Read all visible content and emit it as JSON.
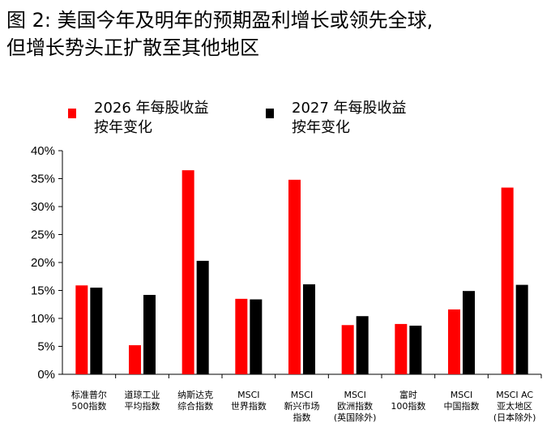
{
  "title": {
    "line1": "图 2: 美国今年及明年的预期盈利增长或领先全球,",
    "line2": "但增长势头正扩散至其他地区"
  },
  "colors": {
    "series1": "#ff0000",
    "series2": "#000000",
    "axis": "#000000"
  },
  "legend": [
    {
      "line1": "2026 年每股收益",
      "line2": "按年变化"
    },
    {
      "line1": "2027 年每股收益",
      "line2": "按年变化"
    }
  ],
  "chart_data": {
    "type": "bar",
    "title": "",
    "xlabel": "",
    "ylabel": "",
    "ylim": [
      0,
      40
    ],
    "ytick_values": [
      0,
      5,
      10,
      15,
      20,
      25,
      30,
      35,
      40
    ],
    "ytick_labels": [
      "0%",
      "5%",
      "10%",
      "15%",
      "20%",
      "25%",
      "30%",
      "35%",
      "40%"
    ],
    "grid": false,
    "legend_position": "top",
    "categories": [
      [
        "标准普尔",
        "500指数"
      ],
      [
        "道琼工业",
        "平均指数"
      ],
      [
        "纳斯达克",
        "综合指数"
      ],
      [
        "MSCI",
        "世界指数"
      ],
      [
        "MSCI",
        "新兴市场",
        "指数"
      ],
      [
        "MSCI",
        "欧洲指数",
        "(英国除外)"
      ],
      [
        "富时",
        "100指数"
      ],
      [
        "MSCI",
        "中国指数"
      ],
      [
        "MSCI AC",
        "亚太地区",
        "(日本除外)"
      ]
    ],
    "series": [
      {
        "name": "2026 年每股收益按年变化",
        "color": "#ff0000",
        "values": [
          15.9,
          5.2,
          36.5,
          13.5,
          34.8,
          8.8,
          9.0,
          11.6,
          33.4
        ]
      },
      {
        "name": "2027 年每股收益按年变化",
        "color": "#000000",
        "values": [
          15.5,
          14.2,
          20.3,
          13.4,
          16.1,
          10.4,
          8.7,
          14.9,
          16.0
        ]
      }
    ]
  }
}
